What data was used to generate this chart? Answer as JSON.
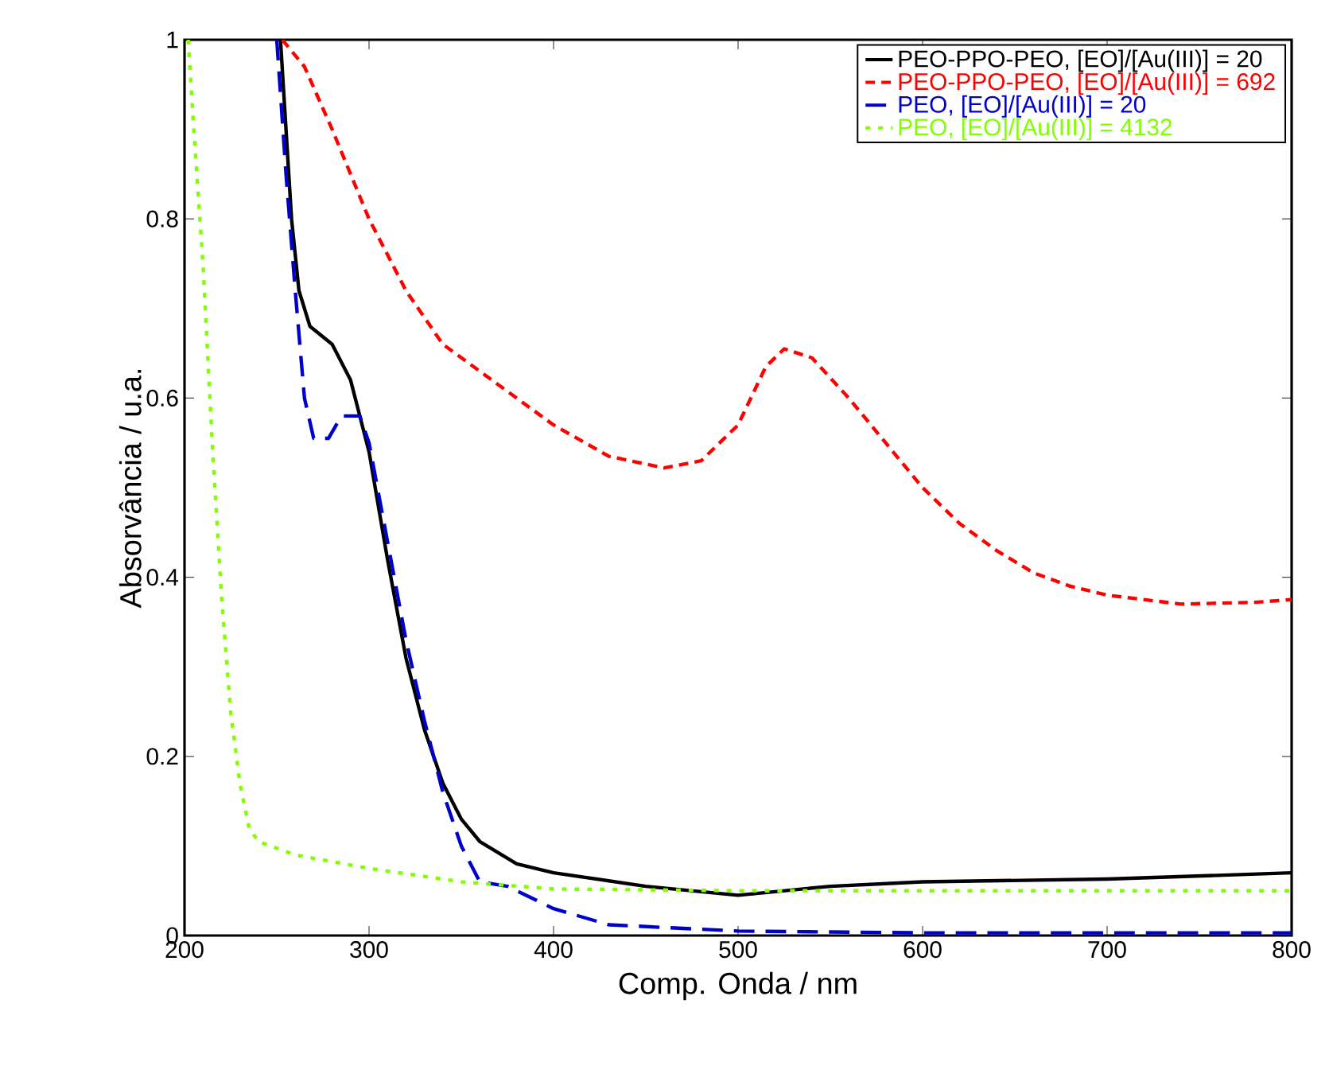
{
  "chart_data": {
    "type": "line",
    "xlabel": "Comp. Onda / nm",
    "ylabel": "Absorvância / u.a.",
    "xlim": [
      200,
      800
    ],
    "ylim": [
      0,
      1
    ],
    "xticks": [
      200,
      300,
      400,
      500,
      600,
      700,
      800
    ],
    "yticks": [
      0,
      0.2,
      0.4,
      0.6,
      0.8,
      1
    ],
    "grid": false,
    "legend": "top right",
    "marker": "none",
    "series": [
      {
        "name": "PEO-PPO-PEO, [EO]/[Au(III)]  = 20",
        "color": "#000000",
        "line_style": "solid",
        "x": [
          252,
          255,
          258,
          262,
          268,
          280,
          290,
          300,
          310,
          320,
          330,
          340,
          350,
          360,
          380,
          400,
          450,
          500,
          550,
          600,
          700,
          800
        ],
        "values": [
          1.0,
          0.9,
          0.8,
          0.72,
          0.68,
          0.66,
          0.62,
          0.54,
          0.42,
          0.31,
          0.23,
          0.17,
          0.13,
          0.105,
          0.08,
          0.07,
          0.055,
          0.045,
          0.055,
          0.06,
          0.063,
          0.07
        ]
      },
      {
        "name": "PEO-PPO-PEO, [EO]/[Au(III)]  = 692",
        "color": "#ff0000",
        "line_style": "dashed",
        "x": [
          253,
          265,
          280,
          300,
          320,
          340,
          360,
          380,
          400,
          430,
          460,
          480,
          500,
          515,
          525,
          540,
          560,
          580,
          600,
          620,
          640,
          660,
          680,
          700,
          740,
          780,
          800
        ],
        "values": [
          1.0,
          0.97,
          0.9,
          0.8,
          0.72,
          0.66,
          0.63,
          0.6,
          0.57,
          0.535,
          0.522,
          0.53,
          0.57,
          0.635,
          0.655,
          0.645,
          0.6,
          0.55,
          0.5,
          0.46,
          0.43,
          0.405,
          0.39,
          0.38,
          0.37,
          0.372,
          0.375
        ]
      },
      {
        "name": "PEO, [EO]/[Au(III)]  = 20",
        "color": "#0000cc",
        "line_style": "longdashed",
        "x": [
          250,
          255,
          260,
          265,
          270,
          278,
          285,
          295,
          300,
          310,
          320,
          330,
          340,
          350,
          360,
          375,
          400,
          430,
          500,
          600,
          800
        ],
        "values": [
          1.0,
          0.85,
          0.72,
          0.6,
          0.555,
          0.555,
          0.58,
          0.58,
          0.55,
          0.44,
          0.33,
          0.24,
          0.16,
          0.1,
          0.06,
          0.055,
          0.03,
          0.012,
          0.005,
          0.003,
          0.003
        ]
      },
      {
        "name": "PEO, [EO]/[Au(III)]  = 4132",
        "color": "#80ff00",
        "line_style": "dotted",
        "x": [
          202,
          205,
          210,
          215,
          220,
          225,
          230,
          235,
          240,
          260,
          300,
          350,
          400,
          500,
          800
        ],
        "values": [
          1.0,
          0.9,
          0.75,
          0.55,
          0.38,
          0.25,
          0.17,
          0.12,
          0.105,
          0.09,
          0.075,
          0.06,
          0.052,
          0.05,
          0.05
        ]
      }
    ]
  }
}
